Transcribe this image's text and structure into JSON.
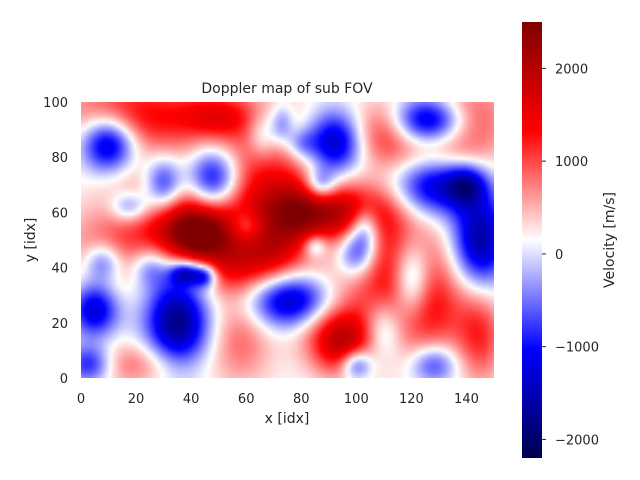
{
  "chart_data": {
    "type": "heatmap",
    "title": "Doppler map of sub FOV",
    "xlabel": "x [idx]",
    "ylabel": "y [idx]",
    "xlim": [
      0,
      150
    ],
    "ylim": [
      0,
      100
    ],
    "x_ticks": [
      0,
      20,
      40,
      60,
      80,
      100,
      120,
      140
    ],
    "y_ticks": [
      0,
      20,
      40,
      60,
      80,
      100
    ],
    "colormap": "seismic",
    "colorbar": {
      "label": "Velocity [m/s]",
      "range": [
        -2200,
        2500
      ],
      "ticks": [
        -2000,
        -1000,
        0,
        1000,
        2000
      ],
      "tick_labels": [
        "−2000",
        "−1000",
        "0",
        "1000",
        "2000"
      ],
      "placement": "right"
    },
    "grid": false,
    "features": [
      {
        "x": 42,
        "y": 52,
        "sx": 9,
        "sy": 7,
        "v": 1800
      },
      {
        "x": 35,
        "y": 60,
        "sx": 16,
        "sy": 12,
        "v": 1100
      },
      {
        "x": 20,
        "y": 95,
        "sx": 18,
        "sy": 10,
        "v": 1200
      },
      {
        "x": 65,
        "y": 70,
        "sx": 15,
        "sy": 18,
        "v": 1100
      },
      {
        "x": 80,
        "y": 60,
        "sx": 10,
        "sy": 8,
        "v": 1600
      },
      {
        "x": 100,
        "y": 60,
        "sx": 10,
        "sy": 7,
        "v": 1300
      },
      {
        "x": 115,
        "y": 40,
        "sx": 12,
        "sy": 18,
        "v": 1200
      },
      {
        "x": 95,
        "y": 12,
        "sx": 8,
        "sy": 8,
        "v": 1400
      },
      {
        "x": 90,
        "y": 25,
        "sx": 10,
        "sy": 10,
        "v": 1000
      },
      {
        "x": 125,
        "y": 25,
        "sx": 12,
        "sy": 12,
        "v": 900
      },
      {
        "x": 145,
        "y": 15,
        "sx": 6,
        "sy": 12,
        "v": 900
      },
      {
        "x": 10,
        "y": 45,
        "sx": 12,
        "sy": 10,
        "v": 700
      },
      {
        "x": 55,
        "y": 40,
        "sx": 10,
        "sy": 8,
        "v": 900
      },
      {
        "x": 140,
        "y": 95,
        "sx": 10,
        "sy": 8,
        "v": 1000
      },
      {
        "x": 110,
        "y": 90,
        "sx": 8,
        "sy": 8,
        "v": 900
      },
      {
        "x": 50,
        "y": 95,
        "sx": 10,
        "sy": 6,
        "v": 900
      },
      {
        "x": 58,
        "y": 15,
        "sx": 8,
        "sy": 12,
        "v": 700
      },
      {
        "x": 70,
        "y": 45,
        "sx": 8,
        "sy": 8,
        "v": 900
      },
      {
        "x": 130,
        "y": 82,
        "sx": 14,
        "sy": 8,
        "v": 800
      },
      {
        "x": 20,
        "y": 5,
        "sx": 15,
        "sy": 6,
        "v": 700
      },
      {
        "x": 10,
        "y": 85,
        "sx": 7,
        "sy": 7,
        "v": -1900
      },
      {
        "x": 48,
        "y": 72,
        "sx": 7,
        "sy": 8,
        "v": -2000
      },
      {
        "x": 35,
        "y": 20,
        "sx": 8,
        "sy": 12,
        "v": -2000
      },
      {
        "x": 78,
        "y": 28,
        "sx": 12,
        "sy": 7,
        "v": -2000
      },
      {
        "x": 92,
        "y": 85,
        "sx": 7,
        "sy": 8,
        "v": -1700
      },
      {
        "x": 127,
        "y": 93,
        "sx": 10,
        "sy": 6,
        "v": -2000
      },
      {
        "x": 128,
        "y": 70,
        "sx": 10,
        "sy": 8,
        "v": -1700
      },
      {
        "x": 145,
        "y": 50,
        "sx": 7,
        "sy": 12,
        "v": -1800
      },
      {
        "x": 120,
        "y": 35,
        "sx": 5,
        "sy": 10,
        "v": -1600
      },
      {
        "x": 5,
        "y": 25,
        "sx": 6,
        "sy": 7,
        "v": -1500
      },
      {
        "x": 8,
        "y": 42,
        "sx": 5,
        "sy": 5,
        "v": -1100
      },
      {
        "x": 30,
        "y": 70,
        "sx": 5,
        "sy": 7,
        "v": -1500
      },
      {
        "x": 18,
        "y": 62,
        "sx": 5,
        "sy": 4,
        "v": -1000
      },
      {
        "x": 38,
        "y": 38,
        "sx": 4,
        "sy": 3,
        "v": -1600
      },
      {
        "x": 45,
        "y": 37,
        "sx": 3,
        "sy": 3,
        "v": -1400
      },
      {
        "x": 103,
        "y": 55,
        "sx": 4,
        "sy": 6,
        "v": -1300
      },
      {
        "x": 100,
        "y": 45,
        "sx": 5,
        "sy": 6,
        "v": -1200
      },
      {
        "x": 87,
        "y": 70,
        "sx": 4,
        "sy": 4,
        "v": -1100
      },
      {
        "x": 85,
        "y": 48,
        "sx": 3,
        "sy": 3,
        "v": -900
      },
      {
        "x": 80,
        "y": 85,
        "sx": 4,
        "sy": 4,
        "v": -700
      },
      {
        "x": 3,
        "y": 5,
        "sx": 6,
        "sy": 5,
        "v": -1300
      },
      {
        "x": 128,
        "y": 5,
        "sx": 6,
        "sy": 5,
        "v": -1000
      },
      {
        "x": 100,
        "y": 5,
        "sx": 4,
        "sy": 4,
        "v": -1300
      },
      {
        "x": 110,
        "y": 18,
        "sx": 5,
        "sy": 8,
        "v": -1000
      },
      {
        "x": 66,
        "y": 88,
        "sx": 4,
        "sy": 6,
        "v": -700
      },
      {
        "x": 73,
        "y": 92,
        "sx": 3,
        "sy": 5,
        "v": -800
      },
      {
        "x": 60,
        "y": 55,
        "sx": 4,
        "sy": 4,
        "v": -700
      },
      {
        "x": 25,
        "y": 40,
        "sx": 5,
        "sy": 5,
        "v": -800
      },
      {
        "x": 140,
        "y": 70,
        "sx": 5,
        "sy": 5,
        "v": -1200
      }
    ]
  }
}
